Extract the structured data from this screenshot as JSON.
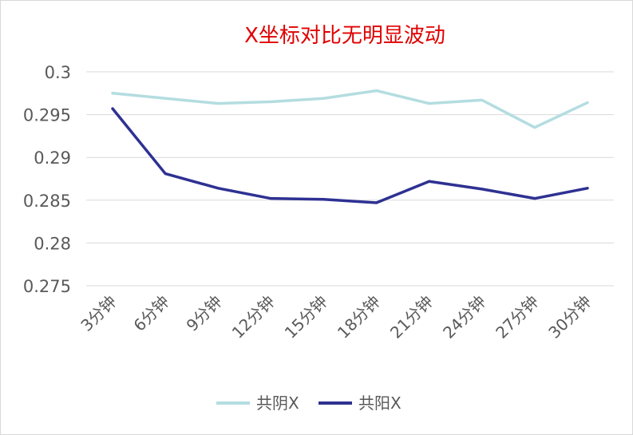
{
  "chart_data": {
    "type": "line",
    "title": "X坐标对比无明显波动",
    "categories": [
      "3分钟",
      "6分钟",
      "9分钟",
      "12分钟",
      "15分钟",
      "18分钟",
      "21分钟",
      "24分钟",
      "27分钟",
      "30分钟"
    ],
    "series": [
      {
        "name": "共阴X",
        "color": "#b4dde0",
        "values": [
          0.2975,
          0.2969,
          0.2963,
          0.2965,
          0.2969,
          0.2978,
          0.2963,
          0.2967,
          0.2935,
          0.2964
        ]
      },
      {
        "name": "共阳X",
        "color": "#2e3192",
        "values": [
          0.2957,
          0.2881,
          0.2864,
          0.2852,
          0.2851,
          0.2847,
          0.2872,
          0.2863,
          0.2852,
          0.2864
        ]
      }
    ],
    "yticks": [
      "0.275",
      "0.28",
      "0.285",
      "0.29",
      "0.295",
      "0.3"
    ],
    "ylim": [
      0.275,
      0.3
    ],
    "grid": true,
    "legend": "bottom",
    "title_color": "#e00000"
  }
}
